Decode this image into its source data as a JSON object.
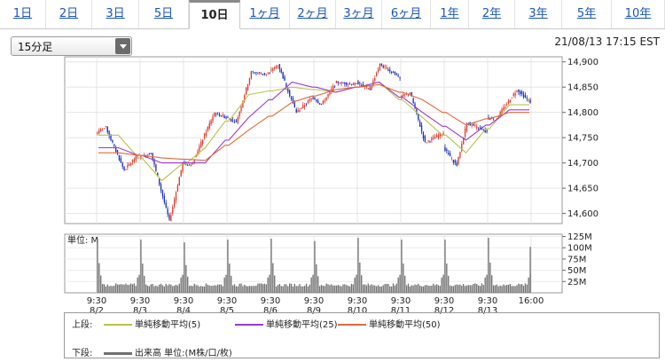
{
  "tabs": [
    {
      "label": "1日",
      "active": false
    },
    {
      "label": "2日",
      "active": false
    },
    {
      "label": "3日",
      "active": false
    },
    {
      "label": "5日",
      "active": false
    },
    {
      "label": "10日",
      "active": true
    },
    {
      "label": "1ヶ月",
      "active": false
    },
    {
      "label": "2ヶ月",
      "active": false
    },
    {
      "label": "3ヶ月",
      "active": false
    },
    {
      "label": "6ヶ月",
      "active": false
    },
    {
      "label": "1年",
      "active": false
    },
    {
      "label": "2年",
      "active": false
    },
    {
      "label": "3年",
      "active": false
    },
    {
      "label": "5年",
      "active": false
    },
    {
      "label": "10年",
      "active": false
    }
  ],
  "interval": {
    "selected": "15分足"
  },
  "timestamp": "21/08/13 17:15 EST",
  "colors": {
    "up_candle": "#e03a2a",
    "down_candle": "#1a2fbf",
    "ma5": "#b8c24a",
    "ma25": "#9a3ad0",
    "ma50": "#e06a3a",
    "volume": "#707070"
  },
  "chart_data": [
    {
      "type": "candlestick",
      "title": "",
      "x_tick_labels": [
        "9:30\n8/2",
        "9:30\n8/3",
        "9:30\n8/4",
        "9:30\n8/5",
        "9:30\n8/6",
        "9:30\n8/9",
        "9:30\n8/10",
        "9:30\n8/11",
        "9:30\n8/12",
        "9:30\n8/13",
        "16:00"
      ],
      "y_ticks": [
        14600,
        14650,
        14700,
        14750,
        14800,
        14850,
        14900
      ],
      "ylim": [
        14580,
        14910
      ],
      "grid": true,
      "sessions": [
        {
          "date": "8/2",
          "open": 14760,
          "high": 14770,
          "low": 14685,
          "close": 14720
        },
        {
          "date": "8/3",
          "open": 14710,
          "high": 14720,
          "low": 14585,
          "close": 14700
        },
        {
          "date": "8/4",
          "open": 14700,
          "high": 14800,
          "low": 14695,
          "close": 14790
        },
        {
          "date": "8/5",
          "open": 14790,
          "high": 14880,
          "low": 14780,
          "close": 14875
        },
        {
          "date": "8/6",
          "open": 14880,
          "high": 14895,
          "low": 14800,
          "close": 14830
        },
        {
          "date": "8/9",
          "open": 14830,
          "high": 14860,
          "low": 14815,
          "close": 14855
        },
        {
          "date": "8/10",
          "open": 14860,
          "high": 14895,
          "low": 14845,
          "close": 14870
        },
        {
          "date": "8/11",
          "open": 14830,
          "high": 14840,
          "low": 14740,
          "close": 14760
        },
        {
          "date": "8/12",
          "open": 14730,
          "high": 14780,
          "low": 14695,
          "close": 14760
        },
        {
          "date": "8/13",
          "open": 14790,
          "high": 14845,
          "low": 14785,
          "close": 14820
        }
      ],
      "series": [
        {
          "name": "単純移動平均(5)",
          "values": [
            14755,
            14665,
            14730,
            14835,
            14850,
            14840,
            14860,
            14790,
            14720,
            14815
          ]
        },
        {
          "name": "単純移動平均(25)",
          "values": [
            14730,
            14700,
            14700,
            14790,
            14860,
            14840,
            14860,
            14800,
            14745,
            14805
          ]
        },
        {
          "name": "単純移動平均(50)",
          "values": [
            14720,
            14710,
            14705,
            14765,
            14820,
            14845,
            14855,
            14825,
            14775,
            14800
          ]
        }
      ]
    },
    {
      "type": "bar",
      "title": "",
      "unit_label": "単位: M",
      "y_tick_labels": [
        "125M",
        "100M",
        "75M",
        "50M",
        "25M"
      ],
      "y_ticks": [
        125,
        100,
        75,
        50,
        25
      ],
      "ylim": [
        0,
        130
      ],
      "session_peak_volume_M": [
        120,
        118,
        112,
        118,
        120,
        115,
        122,
        118,
        118,
        122,
        102
      ]
    }
  ],
  "legend": {
    "upper_label": "上段:",
    "lower_label": "下段:",
    "items": [
      {
        "name": "単純移動平均(5)"
      },
      {
        "name": "単純移動平均(25)"
      },
      {
        "name": "単純移動平均(50)"
      }
    ],
    "volume_item": "出来高 単位:(M株/口/枚)"
  }
}
